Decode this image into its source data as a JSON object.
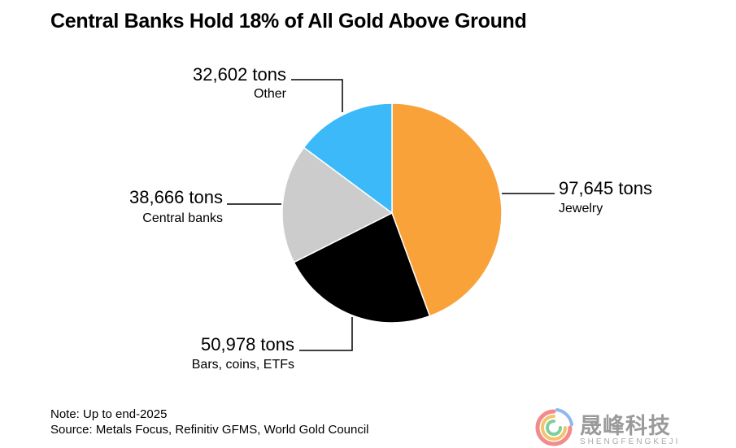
{
  "title": "Central Banks Hold 18% of All Gold Above Ground",
  "chart_data": {
    "type": "pie",
    "title": "Central Banks Hold 18% of All Gold Above Ground",
    "unit": "tons",
    "slices": [
      {
        "category": "Jewelry",
        "value": 97645,
        "value_label": "97,645 tons",
        "color": "#F9A23A"
      },
      {
        "category": "Bars, coins, ETFs",
        "value": 50978,
        "value_label": "50,978 tons",
        "color": "#000000"
      },
      {
        "category": "Central banks",
        "value": 38666,
        "value_label": "38,666 tons",
        "color": "#CCCCCC"
      },
      {
        "category": "Other",
        "value": 32602,
        "value_label": "32,602 tons",
        "color": "#3BB9F8"
      }
    ]
  },
  "footer": {
    "note": "Note: Up to end-2025",
    "source": "Source: Metals Focus, Refinitiv GFMS, World Gold Council"
  },
  "watermark": {
    "name": "晟峰科技",
    "subtitle": "SHENGFENGKEJI"
  }
}
